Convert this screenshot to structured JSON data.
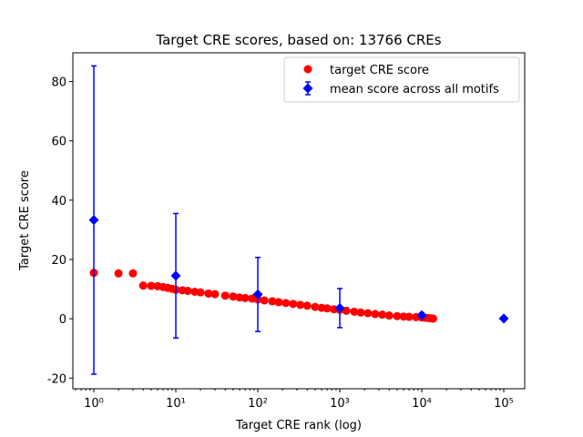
{
  "chart_data": {
    "type": "scatter",
    "title": "Target CRE scores, based on: 13766 CREs",
    "xlabel": "Target CRE rank (log)",
    "ylabel": "Target CRE score",
    "xscale": "log",
    "xlim": [
      0.555,
      180000
    ],
    "ylim": [
      -23.6,
      89.7
    ],
    "xticks": [
      {
        "value": 1,
        "label": "10⁰"
      },
      {
        "value": 10,
        "label": "10¹"
      },
      {
        "value": 100,
        "label": "10²"
      },
      {
        "value": 1000,
        "label": "10³"
      },
      {
        "value": 10000,
        "label": "10⁴"
      },
      {
        "value": 100000,
        "label": "10⁵"
      }
    ],
    "xminorticks": [
      0.6,
      0.7,
      0.8,
      0.9,
      2,
      3,
      4,
      5,
      6,
      7,
      8,
      9,
      20,
      30,
      40,
      50,
      60,
      70,
      80,
      90,
      200,
      300,
      400,
      500,
      600,
      700,
      800,
      900,
      2000,
      3000,
      4000,
      5000,
      6000,
      7000,
      8000,
      9000,
      20000,
      30000,
      40000,
      50000,
      60000,
      70000,
      80000,
      90000
    ],
    "yticks": [
      -20,
      0,
      20,
      40,
      60,
      80
    ],
    "legend": "upper right",
    "series": [
      {
        "name": "target CRE score",
        "color": "#ff0000",
        "marker": "o",
        "x": [
          1,
          2,
          3,
          4,
          5,
          6,
          7,
          8,
          9,
          10,
          12,
          14,
          17,
          20,
          25,
          30,
          40,
          50,
          60,
          70,
          85,
          100,
          120,
          150,
          180,
          220,
          270,
          330,
          400,
          500,
          600,
          700,
          850,
          1000,
          1200,
          1500,
          1800,
          2200,
          2700,
          3300,
          4000,
          5000,
          6000,
          7000,
          8500,
          10000,
          11000,
          12000,
          13000,
          13766
        ],
        "values": [
          15.5,
          15.3,
          15.3,
          11.2,
          11.1,
          11.0,
          10.7,
          10.4,
          10.1,
          9.8,
          9.6,
          9.4,
          9.1,
          8.9,
          8.5,
          8.3,
          7.8,
          7.5,
          7.2,
          7.0,
          6.8,
          6.5,
          6.2,
          5.9,
          5.6,
          5.3,
          5.0,
          4.7,
          4.4,
          4.0,
          3.7,
          3.5,
          3.2,
          3.0,
          2.7,
          2.4,
          2.1,
          1.9,
          1.6,
          1.4,
          1.1,
          0.9,
          0.75,
          0.65,
          0.55,
          0.45,
          0.35,
          0.25,
          0.15,
          0.05
        ]
      },
      {
        "name": "mean score across all motifs",
        "color": "#0000ff",
        "marker": "D",
        "x": [
          1,
          10,
          100,
          1000,
          10000,
          100000
        ],
        "values": [
          33.3,
          14.5,
          8.2,
          3.6,
          1.2,
          0.1
        ],
        "errors": [
          52,
          21,
          12.5,
          6.6,
          0.8,
          0
        ]
      }
    ]
  }
}
